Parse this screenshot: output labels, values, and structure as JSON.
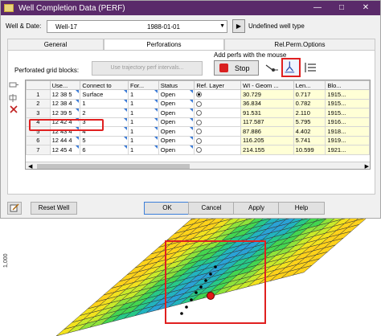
{
  "window": {
    "title": "Well Completion Data (PERF)",
    "minimize_glyph": "—",
    "maximize_glyph": "□",
    "close_glyph": "✕"
  },
  "well_row": {
    "label": "Well & Date:",
    "well": "Well-17",
    "date": "1988-01-01",
    "dropdown_glyph": "▼",
    "next_glyph": "▶",
    "status": "Undefined well type"
  },
  "tabs": [
    {
      "label": "General",
      "selected": false
    },
    {
      "label": "Perforations",
      "selected": true
    },
    {
      "label": "Rel.Perm.Options",
      "selected": false
    }
  ],
  "perforations": {
    "grid_label": "Perforated grid blocks:",
    "trajectory_button": "Use trajectory perf intervals...",
    "add_perfs_label": "Add perfs with the mouse",
    "stop_button": "Stop"
  },
  "table": {
    "columns": [
      "",
      "Use...",
      "Connect to",
      "For...",
      "Status",
      "Ref. Layer",
      "WI - Geom ...",
      "Len...",
      "Blo..."
    ],
    "rows": [
      {
        "n": "1",
        "use": "12 38 5",
        "connect": "Surface",
        "for": "1",
        "status": "Open",
        "ref": true,
        "wi": "30.729",
        "len": "0.717",
        "blo": "1915..."
      },
      {
        "n": "2",
        "use": "12 38 4",
        "connect": "1",
        "for": "1",
        "status": "Open",
        "ref": false,
        "wi": "36.834",
        "len": "0.782",
        "blo": "1915..."
      },
      {
        "n": "3",
        "use": "12 39 5",
        "connect": "2",
        "for": "1",
        "status": "Open",
        "ref": false,
        "wi": "91.531",
        "len": "2.110",
        "blo": "1915..."
      },
      {
        "n": "4",
        "use": "12 42 4",
        "connect": "3",
        "for": "1",
        "status": "Open",
        "ref": false,
        "wi": "117.587",
        "len": "5.795",
        "blo": "1916..."
      },
      {
        "n": "5",
        "use": "12 43 4",
        "connect": "4",
        "for": "1",
        "status": "Open",
        "ref": false,
        "wi": "87.886",
        "len": "4.402",
        "blo": "1918..."
      },
      {
        "n": "6",
        "use": "12 44 4",
        "connect": "5",
        "for": "1",
        "status": "Open",
        "ref": false,
        "wi": "116.205",
        "len": "5.741",
        "blo": "1919..."
      },
      {
        "n": "7",
        "use": "12 45 4",
        "connect": "6",
        "for": "1",
        "status": "Open",
        "ref": false,
        "wi": "214.155",
        "len": "10.599",
        "blo": "1921..."
      }
    ],
    "highlighted_row": "4",
    "scroll_left_glyph": "◀",
    "scroll_right_glyph": "▶"
  },
  "buttons": {
    "reset": "Reset Well",
    "ok": "OK",
    "cancel": "Cancel",
    "apply": "Apply",
    "help": "Help"
  },
  "map": {
    "axis_label": "1,000"
  },
  "colors": {
    "title_bar": "#5a2a6a",
    "stop_red": "#d92020",
    "highlight_red": "#e02020",
    "readonly_cell": "#ffffd6"
  }
}
